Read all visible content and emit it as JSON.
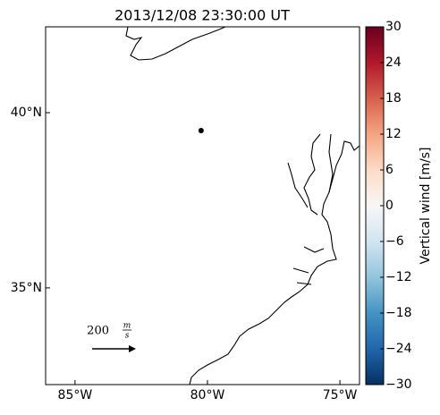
{
  "chart_data": {
    "type": "scatter",
    "title": "2013/12/08 23:30:00 UT",
    "x": [
      -80.24
    ],
    "y": [
      39.49
    ],
    "color": "#000000",
    "xlim": [
      -86.11,
      -74.26
    ],
    "ylim": [
      32.24,
      42.45
    ],
    "xticks": [
      {
        "value": -85,
        "label": "85°W"
      },
      {
        "value": -80,
        "label": "80°W"
      },
      {
        "value": -75,
        "label": "75°W"
      }
    ],
    "yticks": [
      {
        "value": 35,
        "label": "35°N"
      },
      {
        "value": 40,
        "label": "40°N"
      }
    ],
    "quiver_key": {
      "value": 200,
      "numerator": "m",
      "denominator": "s"
    },
    "colorbar": {
      "label": "Vertical wind [m/s]",
      "lim": [
        -30,
        30
      ],
      "ticks": [
        {
          "value": -30,
          "label": "−30"
        },
        {
          "value": -24,
          "label": "−24"
        },
        {
          "value": -18,
          "label": "−18"
        },
        {
          "value": -12,
          "label": "−12"
        },
        {
          "value": -6,
          "label": "−6"
        },
        0,
        6,
        12,
        18,
        24,
        30
      ],
      "colors": [
        "#053061",
        "#2166ac",
        "#4393c3",
        "#92c5de",
        "#d1e5f0",
        "#f7f7f7",
        "#fddbc7",
        "#f4a582",
        "#d6604d",
        "#b2182b",
        "#67001f"
      ]
    }
  }
}
